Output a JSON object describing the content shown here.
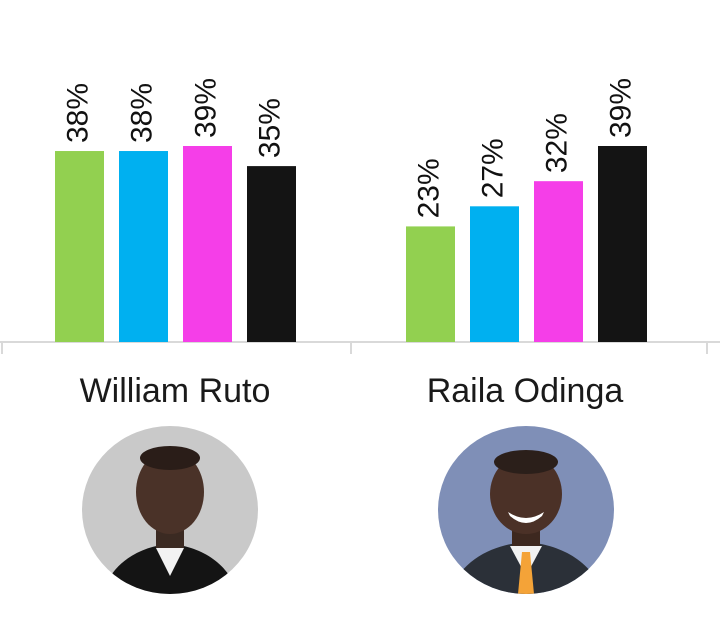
{
  "chart_data": {
    "type": "bar",
    "categories": [
      "William Ruto",
      "Raila Odinga"
    ],
    "series": [
      {
        "values": [
          38,
          23
        ],
        "color": "#92d050"
      },
      {
        "values": [
          38,
          27
        ],
        "color": "#00b0f0"
      },
      {
        "values": [
          39,
          32
        ],
        "color": "#f53ee8"
      },
      {
        "values": [
          35,
          39
        ],
        "color": "#141414"
      }
    ],
    "value_suffix": "%",
    "ylim": [
      0,
      39
    ],
    "grid": false,
    "legend": "none"
  },
  "candidates": [
    {
      "name": "William Ruto"
    },
    {
      "name": "Raila Odinga"
    }
  ]
}
